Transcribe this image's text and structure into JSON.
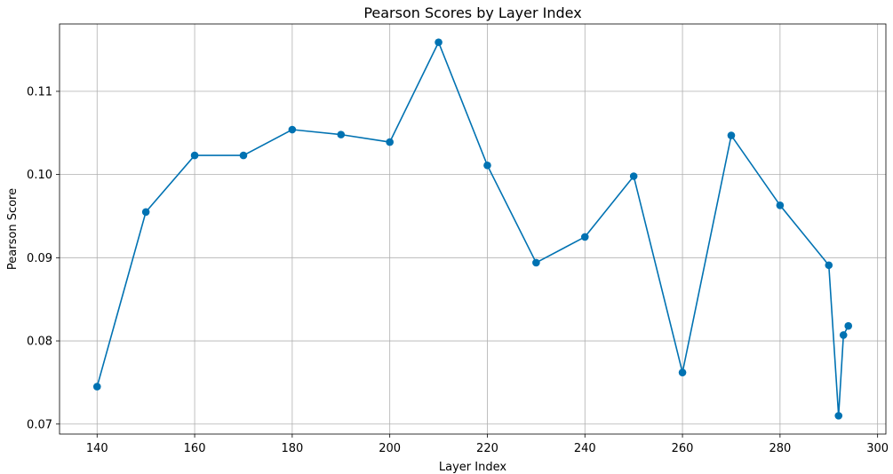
{
  "chart_data": {
    "type": "line",
    "title": "Pearson Scores by Layer Index",
    "xlabel": "Layer Index",
    "ylabel": "Pearson Score",
    "xlim": [
      132.3,
      301.7
    ],
    "ylim": [
      0.0688,
      0.1181
    ],
    "xticks": [
      140,
      160,
      180,
      200,
      220,
      240,
      260,
      280,
      300
    ],
    "yticks": [
      0.07,
      0.08,
      0.09,
      0.1,
      0.11
    ],
    "ytick_labels": [
      "0.07",
      "0.08",
      "0.09",
      "0.10",
      "0.11"
    ],
    "grid": true,
    "color": "#0072b2",
    "series": [
      {
        "x": [
          140,
          150,
          160,
          170,
          180,
          190,
          200,
          210,
          220,
          230,
          240,
          250,
          260,
          270,
          280,
          290,
          292,
          293,
          294
        ],
        "y": [
          0.0745,
          0.0955,
          0.1023,
          0.1023,
          0.1054,
          0.1048,
          0.1039,
          0.1159,
          0.1011,
          0.0894,
          0.0925,
          0.0998,
          0.0762,
          0.1047,
          0.0963,
          0.0891,
          0.071,
          0.0807,
          0.0818
        ]
      }
    ]
  }
}
